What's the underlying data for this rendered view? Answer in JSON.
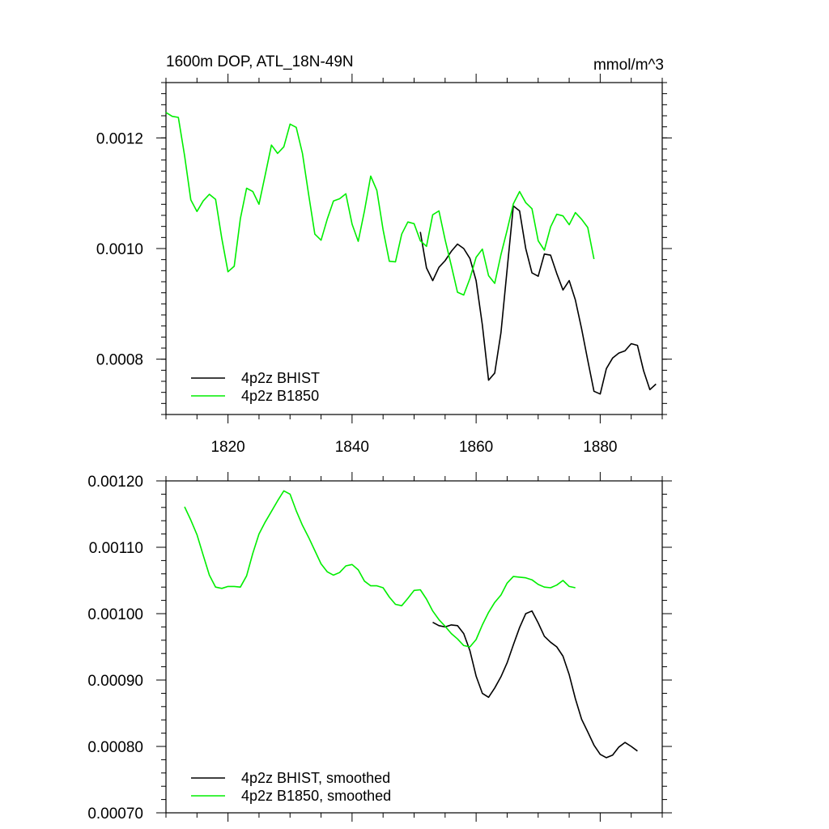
{
  "chart_data": [
    {
      "type": "line",
      "title": "1600m DOP, ATL_18N-49N",
      "units": "mmol/m^3",
      "xlim": [
        1810,
        1890
      ],
      "ylim": [
        0.0007,
        0.0013
      ],
      "x_ticks": [
        1820,
        1840,
        1860,
        1880
      ],
      "y_ticks": [
        0.0008,
        0.001,
        0.0012
      ],
      "y_tick_labels": [
        "0.0008",
        "0.0010",
        "0.0012"
      ],
      "series": [
        {
          "name": "4p2z BHIST",
          "color": "#000000",
          "x": [
            1851,
            1852,
            1853,
            1854,
            1855,
            1856,
            1857,
            1858,
            1859,
            1860,
            1861,
            1862,
            1863,
            1864,
            1865,
            1866,
            1867,
            1868,
            1869,
            1870,
            1871,
            1872,
            1873,
            1874,
            1875,
            1876,
            1877,
            1878,
            1879,
            1880,
            1881,
            1882,
            1883,
            1884,
            1885,
            1886,
            1887,
            1888,
            1889
          ],
          "values": [
            0.00103,
            0.000965,
            0.000942,
            0.000966,
            0.000978,
            0.000995,
            0.001008,
            0.001,
            0.000982,
            0.000942,
            0.000862,
            0.000762,
            0.000775,
            0.000848,
            0.000962,
            0.001077,
            0.001068,
            0.001,
            0.000956,
            0.00095,
            0.00099,
            0.000988,
            0.000955,
            0.000925,
            0.000942,
            0.000907,
            0.000855,
            0.000798,
            0.000742,
            0.000737,
            0.000783,
            0.000802,
            0.000811,
            0.000815,
            0.000828,
            0.000825,
            0.000779,
            0.000745,
            0.000755
          ]
        },
        {
          "name": "4p2z B1850",
          "color": "#00ee00",
          "x": [
            1810,
            1811,
            1812,
            1813,
            1814,
            1815,
            1816,
            1817,
            1818,
            1819,
            1820,
            1821,
            1822,
            1823,
            1824,
            1825,
            1826,
            1827,
            1828,
            1829,
            1830,
            1831,
            1832,
            1833,
            1834,
            1835,
            1836,
            1837,
            1838,
            1839,
            1840,
            1841,
            1842,
            1843,
            1844,
            1845,
            1846,
            1847,
            1848,
            1849,
            1850,
            1851,
            1852,
            1853,
            1854,
            1855,
            1856,
            1857,
            1858,
            1859,
            1860,
            1861,
            1862,
            1863,
            1864,
            1865,
            1866,
            1867,
            1868,
            1869,
            1870,
            1871,
            1872,
            1873,
            1874,
            1875,
            1876,
            1877,
            1878,
            1879
          ],
          "values": [
            0.001246,
            0.001239,
            0.001237,
            0.001168,
            0.001088,
            0.001067,
            0.001086,
            0.001098,
            0.001089,
            0.001018,
            0.000958,
            0.000968,
            0.001054,
            0.001109,
            0.001103,
            0.00108,
            0.001133,
            0.001187,
            0.001172,
            0.001184,
            0.001225,
            0.001219,
            0.001172,
            0.001098,
            0.001026,
            0.001015,
            0.001053,
            0.001086,
            0.00109,
            0.001099,
            0.001044,
            0.001013,
            0.001068,
            0.001131,
            0.001105,
            0.001034,
            0.000977,
            0.000976,
            0.001026,
            0.001048,
            0.001045,
            0.001014,
            0.001004,
            0.001061,
            0.001068,
            0.001016,
            0.000969,
            0.000921,
            0.000916,
            0.000946,
            0.000984,
            0.000999,
            0.000951,
            0.000937,
            0.000989,
            0.001033,
            0.001081,
            0.001103,
            0.001083,
            0.001072,
            0.001014,
            0.000997,
            0.001039,
            0.001062,
            0.001059,
            0.001043,
            0.001065,
            0.001053,
            0.001038,
            0.000981
          ]
        }
      ],
      "legend": "bottom-left"
    },
    {
      "type": "line",
      "xlim": [
        1810,
        1890
      ],
      "ylim": [
        0.0007,
        0.0012
      ],
      "x_ticks": [
        1820,
        1840,
        1860,
        1880
      ],
      "y_ticks": [
        0.0007,
        0.0008,
        0.0009,
        0.001,
        0.0011,
        0.0012
      ],
      "y_tick_labels": [
        "0.00070",
        "0.00080",
        "0.00090",
        "0.00100",
        "0.00110",
        "0.00120"
      ],
      "series": [
        {
          "name": "4p2z BHIST, smoothed",
          "color": "#000000",
          "x": [
            1853,
            1854,
            1855,
            1856,
            1857,
            1858,
            1859,
            1860,
            1861,
            1862,
            1863,
            1864,
            1865,
            1866,
            1867,
            1868,
            1869,
            1870,
            1871,
            1872,
            1873,
            1874,
            1875,
            1876,
            1877,
            1878,
            1879,
            1880,
            1881,
            1882,
            1883,
            1884,
            1885,
            1886
          ],
          "values": [
            0.000987,
            0.000982,
            0.00098,
            0.000983,
            0.000982,
            0.00097,
            0.000944,
            0.000906,
            0.00088,
            0.000874,
            0.000888,
            0.000905,
            0.000926,
            0.000953,
            0.000979,
            0.001,
            0.001004,
            0.000986,
            0.000966,
            0.000957,
            0.00095,
            0.000936,
            0.000908,
            0.000872,
            0.000841,
            0.000822,
            0.000802,
            0.000788,
            0.000783,
            0.000787,
            0.000799,
            0.000806,
            0.0008,
            0.000793
          ]
        },
        {
          "name": "4p2z B1850, smoothed",
          "color": "#00ee00",
          "x": [
            1813,
            1814,
            1815,
            1816,
            1817,
            1818,
            1819,
            1820,
            1821,
            1822,
            1823,
            1824,
            1825,
            1826,
            1827,
            1828,
            1829,
            1830,
            1831,
            1832,
            1833,
            1834,
            1835,
            1836,
            1837,
            1838,
            1839,
            1840,
            1841,
            1842,
            1843,
            1844,
            1845,
            1846,
            1847,
            1848,
            1849,
            1850,
            1851,
            1852,
            1853,
            1854,
            1855,
            1856,
            1857,
            1858,
            1859,
            1860,
            1861,
            1862,
            1863,
            1864,
            1865,
            1866,
            1867,
            1868,
            1869,
            1870,
            1871,
            1872,
            1873,
            1874,
            1875,
            1876
          ],
          "values": [
            0.001161,
            0.001141,
            0.001119,
            0.001088,
            0.001058,
            0.00104,
            0.001038,
            0.001041,
            0.001041,
            0.00104,
            0.001057,
            0.001091,
            0.00112,
            0.001138,
            0.001154,
            0.00117,
            0.001185,
            0.00118,
            0.001155,
            0.001133,
            0.001115,
            0.001095,
            0.001075,
            0.001063,
            0.001058,
            0.001062,
            0.001072,
            0.001074,
            0.001066,
            0.001049,
            0.001042,
            0.001042,
            0.001039,
            0.001025,
            0.001014,
            0.001012,
            0.001023,
            0.001035,
            0.001036,
            0.001022,
            0.001004,
            0.000991,
            0.000981,
            0.00097,
            0.000962,
            0.000952,
            0.00095,
            0.000961,
            0.000983,
            0.001002,
            0.001017,
            0.001028,
            0.001046,
            0.001056,
            0.001055,
            0.001054,
            0.001051,
            0.001044,
            0.00104,
            0.001039,
            0.001043,
            0.00105,
            0.001041,
            0.001039
          ]
        }
      ],
      "legend": "bottom-left"
    }
  ]
}
